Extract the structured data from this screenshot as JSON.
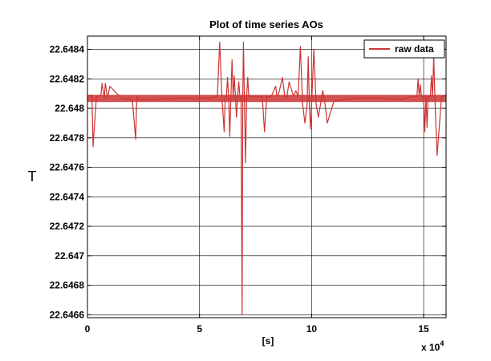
{
  "chart_data": {
    "type": "line",
    "title": "Plot of time series AOs",
    "xlabel": "[s]",
    "ylabel": "T",
    "x_multiplier_label": "x 10",
    "x_multiplier_exponent": "4",
    "xlim": [
      0,
      160000
    ],
    "ylim": [
      22.64658,
      22.64849
    ],
    "xticks": [
      0,
      50000,
      100000,
      150000
    ],
    "xtick_labels": [
      "0",
      "5",
      "10",
      "15"
    ],
    "yticks": [
      22.6466,
      22.6468,
      22.647,
      22.6472,
      22.6474,
      22.6476,
      22.6478,
      22.648,
      22.6482,
      22.6484
    ],
    "ytick_labels": [
      "22.6466",
      "22.6468",
      "22.647",
      "22.6472",
      "22.6474",
      "22.6476",
      "22.6478",
      "22.648",
      "22.6482",
      "22.6484"
    ],
    "grid": true,
    "legend_position": "top-right",
    "baseline": 22.64807,
    "series": [
      {
        "name": "raw data",
        "color": "#cc3333",
        "x": [
          0,
          2000,
          2500,
          4000,
          6000,
          6500,
          7500,
          8000,
          9000,
          10000,
          15000,
          20000,
          21500,
          22000,
          22500,
          30000,
          40000,
          50000,
          55000,
          58000,
          59000,
          60000,
          61000,
          61500,
          62000,
          62500,
          63000,
          63500,
          64000,
          64500,
          65000,
          65500,
          66000,
          66500,
          67000,
          67500,
          68000,
          68500,
          69000,
          69300,
          69600,
          70000,
          70500,
          71000,
          71500,
          72000,
          75000,
          78000,
          79000,
          80000,
          82000,
          84000,
          84500,
          85000,
          87000,
          88000,
          89000,
          90000,
          92000,
          93000,
          94000,
          95000,
          96000,
          97000,
          98000,
          98500,
          99000,
          99500,
          100000,
          101000,
          102000,
          103000,
          104000,
          105000,
          106000,
          107000,
          110000,
          120000,
          130000,
          140000,
          145000,
          147000,
          147500,
          148000,
          148500,
          149000,
          150000,
          150500,
          151000,
          151500,
          152000,
          153000,
          153500,
          154000,
          154500,
          155000,
          156000,
          158000,
          160000
        ],
        "y": [
          22.64808,
          22.64809,
          22.64774,
          22.64808,
          22.64809,
          22.64817,
          22.64807,
          22.64817,
          22.64807,
          22.64815,
          22.64807,
          22.64806,
          22.64779,
          22.64808,
          22.64806,
          22.64806,
          22.64807,
          22.64807,
          22.64807,
          22.64808,
          22.64845,
          22.64808,
          22.64784,
          22.64808,
          22.64808,
          22.64821,
          22.64808,
          22.64781,
          22.64808,
          22.64833,
          22.64807,
          22.64822,
          22.64808,
          22.64794,
          22.64808,
          22.64818,
          22.64808,
          22.64808,
          22.6466,
          22.64808,
          22.64845,
          22.64808,
          22.64763,
          22.64808,
          22.64821,
          22.64808,
          22.64808,
          22.64808,
          22.64784,
          22.64808,
          22.64808,
          22.64815,
          22.64808,
          22.64808,
          22.64821,
          22.64808,
          22.64808,
          22.64818,
          22.64808,
          22.64812,
          22.64808,
          22.64842,
          22.64803,
          22.6479,
          22.64803,
          22.64835,
          22.64803,
          22.64786,
          22.64803,
          22.6484,
          22.64803,
          22.64794,
          22.64803,
          22.64812,
          22.64803,
          22.6479,
          22.64805,
          22.64807,
          22.64807,
          22.64806,
          22.64808,
          22.64808,
          22.6482,
          22.64808,
          22.64816,
          22.64808,
          22.64808,
          22.64784,
          22.64808,
          22.64787,
          22.64808,
          22.64808,
          22.64822,
          22.64808,
          22.64836,
          22.64808,
          22.64768,
          22.64808,
          22.64809
        ]
      }
    ]
  }
}
